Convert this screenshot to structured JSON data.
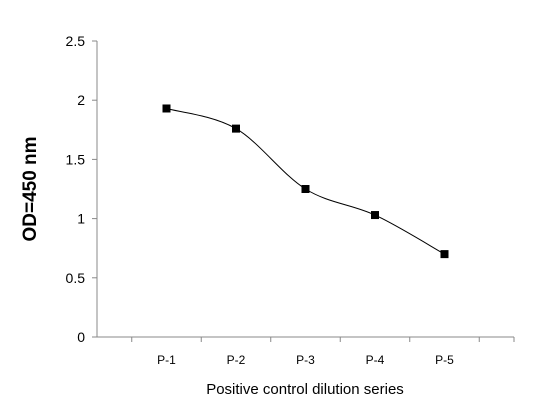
{
  "chart_data": {
    "type": "line",
    "categories": [
      "P-1",
      "P-2",
      "P-3",
      "P-4",
      "P-5"
    ],
    "series": [
      {
        "values": [
          1.93,
          1.76,
          1.25,
          1.03,
          0.7
        ]
      }
    ],
    "xlabel": "Positive control dilution series",
    "ylabel": "OD=450 nm",
    "ylim": [
      0,
      2.5
    ],
    "yticks": [
      "0",
      "0.5",
      "1",
      "1.5",
      "2",
      "2.5"
    ],
    "grid": false,
    "legend": "none",
    "line_color": "#000000",
    "marker": "square",
    "smooth": true
  }
}
